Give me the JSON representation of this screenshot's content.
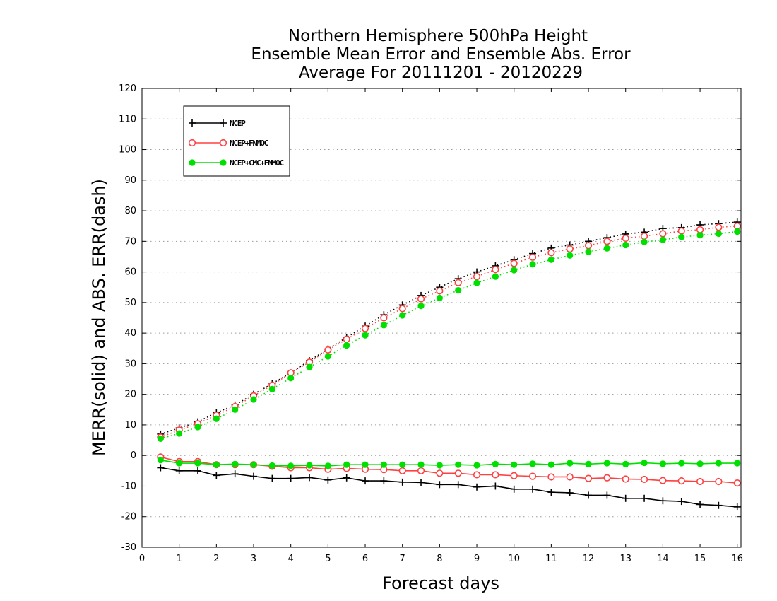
{
  "chart_data": {
    "type": "line",
    "title": [
      "Northern Hemisphere 500hPa Height",
      "Ensemble Mean Error and Ensemble Abs. Error",
      "Average For 20111201 - 20120229"
    ],
    "xlabel": "Forecast days",
    "ylabel": "MERR(solid) and ABS. ERR(dash)",
    "xlim": [
      0,
      16.1
    ],
    "ylim": [
      -30,
      120
    ],
    "xticks": [
      "0",
      "1",
      "2",
      "3",
      "4",
      "5",
      "6",
      "7",
      "8",
      "9",
      "10",
      "11",
      "12",
      "13",
      "14",
      "15",
      "16"
    ],
    "yticks": [
      "-30",
      "-20",
      "-10",
      "0",
      "10",
      "20",
      "30",
      "40",
      "50",
      "60",
      "70",
      "80",
      "90",
      "100",
      "110",
      "120"
    ],
    "grid": "horizontal dotted",
    "legend_position": "top-left",
    "x": [
      0.5,
      1,
      1.5,
      2,
      2.5,
      3,
      3.5,
      4,
      4.5,
      5,
      5.5,
      6,
      6.5,
      7,
      7.5,
      8,
      8.5,
      9,
      9.5,
      10,
      10.5,
      11,
      11.5,
      12,
      12.5,
      13,
      13.5,
      14,
      14.5,
      15,
      15.5,
      16
    ],
    "series": [
      {
        "name": "NCEP",
        "color": "#000000",
        "marker": "plus",
        "merr": [
          -4,
          -5,
          -5,
          -6.5,
          -6,
          -6.8,
          -7.5,
          -7.5,
          -7.2,
          -8,
          -7.3,
          -8.3,
          -8.3,
          -8.7,
          -8.8,
          -9.5,
          -9.5,
          -10.3,
          -10,
          -11,
          -11,
          -12,
          -12.2,
          -13,
          -13,
          -14,
          -14,
          -14.8,
          -15,
          -16,
          -16.3,
          -16.8
        ],
        "abs_err": [
          7,
          9,
          11,
          14,
          16.5,
          20,
          23.5,
          27,
          31,
          34.8,
          38.6,
          42.3,
          46,
          49.2,
          52.3,
          55,
          57.8,
          60,
          62,
          64,
          66,
          67.8,
          68.8,
          70,
          71.2,
          72.4,
          73,
          74.2,
          74.5,
          75.4,
          75.8,
          76.3
        ]
      },
      {
        "name": "NCEP+FNMOC",
        "color": "#ff4040",
        "marker": "open-circle",
        "merr": [
          -0.5,
          -2,
          -2,
          -3,
          -3,
          -3,
          -3.5,
          -4,
          -4,
          -4.5,
          -4.2,
          -4.5,
          -4.6,
          -5,
          -5,
          -5.8,
          -5.8,
          -6.3,
          -6.3,
          -6.6,
          -6.8,
          -7,
          -7,
          -7.5,
          -7.3,
          -7.7,
          -7.8,
          -8.2,
          -8.3,
          -8.5,
          -8.5,
          -9
        ],
        "abs_err": [
          6,
          8.3,
          10.4,
          13.2,
          16,
          19.5,
          23,
          27,
          30.5,
          34.5,
          38,
          41.5,
          45,
          48,
          51.2,
          53.8,
          56.5,
          58.5,
          60.8,
          62.8,
          64.8,
          66.3,
          67.5,
          68.6,
          70,
          71,
          71.7,
          72.5,
          73.4,
          73.8,
          74.6,
          75
        ]
      },
      {
        "name": "NCEP+CMC+FNMOC",
        "color": "#00e000",
        "marker": "filled-circle",
        "merr": [
          -1.5,
          -2.5,
          -2.5,
          -3,
          -2.8,
          -3,
          -3.3,
          -3.4,
          -3.2,
          -3.4,
          -3,
          -3,
          -3,
          -3,
          -3,
          -3.2,
          -3,
          -3.2,
          -2.8,
          -3,
          -2.7,
          -3,
          -2.5,
          -2.8,
          -2.5,
          -2.8,
          -2.4,
          -2.7,
          -2.5,
          -2.7,
          -2.5,
          -2.5
        ],
        "abs_err": [
          5.5,
          7.2,
          9.3,
          12,
          15,
          18.3,
          21.7,
          25.3,
          28.9,
          32.4,
          36,
          39.3,
          42.6,
          45.8,
          48.9,
          51.5,
          54,
          56.4,
          58.5,
          60.6,
          62.5,
          64,
          65.4,
          66.6,
          67.7,
          68.8,
          69.8,
          70.5,
          71.4,
          72,
          72.5,
          73.2
        ]
      }
    ]
  }
}
